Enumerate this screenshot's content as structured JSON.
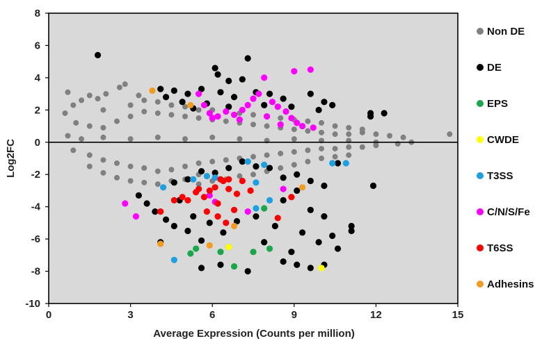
{
  "chart_data": {
    "type": "scatter",
    "title": "",
    "xlabel": "Average Expression (Counts per million)",
    "ylabel": "Log2FC",
    "xlim": [
      0,
      15
    ],
    "ylim": [
      -10,
      8
    ],
    "x_ticks": [
      "0",
      "3",
      "6",
      "9",
      "12",
      "15"
    ],
    "y_ticks": [
      "8",
      "6",
      "4",
      "2",
      "0",
      "-2",
      "-4",
      "-6",
      "-8",
      "-10"
    ],
    "background": "#d9d9d9",
    "grid": false,
    "zero_line": true,
    "legend_position": "right",
    "series": [
      {
        "name": "Non DE",
        "color": "#808080",
        "points": [
          [
            0.6,
            1.8
          ],
          [
            0.7,
            3.1
          ],
          [
            0.9,
            2.3
          ],
          [
            1.2,
            2.6
          ],
          [
            1.5,
            2.9
          ],
          [
            1.8,
            2.7
          ],
          [
            2.1,
            3.0
          ],
          [
            2.6,
            3.4
          ],
          [
            2.8,
            3.6
          ],
          [
            3.3,
            2.9
          ],
          [
            1.0,
            1.2
          ],
          [
            1.5,
            1.0
          ],
          [
            2.0,
            0.9
          ],
          [
            2.5,
            1.3
          ],
          [
            3.0,
            1.6
          ],
          [
            3.5,
            1.9
          ],
          [
            4.0,
            1.8
          ],
          [
            4.5,
            1.7
          ],
          [
            5.0,
            1.6
          ],
          [
            5.5,
            1.5
          ],
          [
            6.0,
            1.4
          ],
          [
            6.5,
            1.3
          ],
          [
            7.0,
            1.2
          ],
          [
            7.5,
            1.1
          ],
          [
            8.0,
            1.0
          ],
          [
            8.5,
            0.9
          ],
          [
            9.0,
            0.8
          ],
          [
            9.5,
            0.7
          ],
          [
            10.0,
            0.6
          ],
          [
            10.5,
            0.5
          ],
          [
            11.0,
            0.5
          ],
          [
            11.5,
            0.6
          ],
          [
            12.0,
            0.5
          ],
          [
            12.5,
            0.4
          ],
          [
            13.0,
            0.3
          ],
          [
            13.3,
            0.0
          ],
          [
            14.7,
            0.5
          ],
          [
            0.7,
            0.4
          ],
          [
            1.2,
            0.2
          ],
          [
            2.0,
            0.3
          ],
          [
            3.0,
            0.2
          ],
          [
            4.0,
            0.3
          ],
          [
            5.0,
            0.2
          ],
          [
            6.0,
            0.3
          ],
          [
            7.0,
            0.2
          ],
          [
            8.0,
            0.1
          ],
          [
            9.0,
            0.2
          ],
          [
            10.0,
            0.1
          ],
          [
            11.0,
            0.1
          ],
          [
            12.0,
            0.0
          ],
          [
            12.8,
            -0.1
          ],
          [
            0.9,
            -0.5
          ],
          [
            1.5,
            -0.8
          ],
          [
            2.0,
            -1.1
          ],
          [
            2.5,
            -1.3
          ],
          [
            3.0,
            -1.5
          ],
          [
            3.5,
            -1.6
          ],
          [
            4.0,
            -1.8
          ],
          [
            4.5,
            -1.7
          ],
          [
            5.0,
            -1.5
          ],
          [
            5.5,
            -1.3
          ],
          [
            6.0,
            -1.2
          ],
          [
            6.5,
            -1.1
          ],
          [
            7.0,
            -1.0
          ],
          [
            7.5,
            -0.9
          ],
          [
            8.0,
            -0.8
          ],
          [
            8.5,
            -0.7
          ],
          [
            9.0,
            -0.6
          ],
          [
            9.5,
            -0.5
          ],
          [
            10.0,
            -0.4
          ],
          [
            10.5,
            -0.4
          ],
          [
            11.0,
            -0.3
          ],
          [
            11.5,
            -0.3
          ],
          [
            12.0,
            -0.2
          ],
          [
            1.5,
            -1.5
          ],
          [
            2.0,
            -1.9
          ],
          [
            2.5,
            -2.2
          ],
          [
            3.0,
            -2.4
          ],
          [
            3.5,
            -2.5
          ],
          [
            4.0,
            -2.6
          ],
          [
            4.5,
            -2.4
          ],
          [
            5.0,
            -2.3
          ],
          [
            5.5,
            -2.0
          ],
          [
            2.0,
            2.0
          ],
          [
            3.0,
            2.3
          ],
          [
            3.5,
            2.6
          ],
          [
            4.0,
            2.5
          ],
          [
            4.5,
            2.3
          ],
          [
            5.0,
            2.2
          ],
          [
            5.5,
            2.0
          ],
          [
            6.0,
            2.0
          ],
          [
            6.5,
            1.9
          ],
          [
            7.0,
            1.8
          ],
          [
            7.5,
            1.7
          ],
          [
            8.0,
            1.6
          ],
          [
            8.5,
            1.5
          ],
          [
            9.0,
            1.4
          ],
          [
            9.5,
            1.3
          ],
          [
            10.0,
            1.2
          ],
          [
            10.5,
            1.0
          ],
          [
            11.0,
            0.9
          ],
          [
            11.5,
            0.8
          ],
          [
            5.5,
            -2.6
          ],
          [
            6.0,
            -2.4
          ],
          [
            6.5,
            -2.3
          ],
          [
            7.0,
            -2.1
          ],
          [
            7.5,
            -2.0
          ],
          [
            8.0,
            -1.8
          ],
          [
            8.5,
            -1.6
          ],
          [
            9.0,
            -1.4
          ],
          [
            9.5,
            -1.2
          ],
          [
            10.0,
            -1.0
          ],
          [
            10.5,
            -0.9
          ],
          [
            11.0,
            -0.8
          ]
        ]
      },
      {
        "name": "DE",
        "color": "#000000",
        "points": [
          [
            1.8,
            5.4
          ],
          [
            7.3,
            5.2
          ],
          [
            6.1,
            4.6
          ],
          [
            6.2,
            4.2
          ],
          [
            7.1,
            3.9
          ],
          [
            6.6,
            3.8
          ],
          [
            4.1,
            3.3
          ],
          [
            4.6,
            3.2
          ],
          [
            5.1,
            3.0
          ],
          [
            5.6,
            3.3
          ],
          [
            6.3,
            3.1
          ],
          [
            6.8,
            2.8
          ],
          [
            7.6,
            3.1
          ],
          [
            8.1,
            3.0
          ],
          [
            8.6,
            2.7
          ],
          [
            9.6,
            3.0
          ],
          [
            10.1,
            2.5
          ],
          [
            10.4,
            2.3
          ],
          [
            4.3,
            2.8
          ],
          [
            4.9,
            2.5
          ],
          [
            5.3,
            2.1
          ],
          [
            5.8,
            2.4
          ],
          [
            6.6,
            2.2
          ],
          [
            7.9,
            2.3
          ],
          [
            8.9,
            2.2
          ],
          [
            9.9,
            2.0
          ],
          [
            11.8,
            1.8
          ],
          [
            12.3,
            1.8
          ],
          [
            11.8,
            1.6
          ],
          [
            3.3,
            -3.3
          ],
          [
            3.6,
            -3.8
          ],
          [
            3.9,
            -4.3
          ],
          [
            4.3,
            -4.8
          ],
          [
            4.6,
            -5.2
          ],
          [
            4.1,
            -6.2
          ],
          [
            5.1,
            -5.5
          ],
          [
            5.6,
            -6.1
          ],
          [
            5.6,
            -7.8
          ],
          [
            6.3,
            -7.6
          ],
          [
            7.3,
            -8.0
          ],
          [
            8.6,
            -7.4
          ],
          [
            9.1,
            -7.6
          ],
          [
            9.6,
            -7.8
          ],
          [
            10.1,
            -7.6
          ],
          [
            10.6,
            -6.6
          ],
          [
            11.1,
            -5.5
          ],
          [
            11.1,
            -5.2
          ],
          [
            11.9,
            -2.7
          ],
          [
            10.6,
            -1.3
          ],
          [
            10.1,
            -2.7
          ],
          [
            9.6,
            -2.4
          ],
          [
            9.1,
            -2.0
          ],
          [
            8.6,
            -2.2
          ],
          [
            8.1,
            -1.6
          ],
          [
            7.6,
            -1.5
          ],
          [
            7.1,
            -1.2
          ],
          [
            6.6,
            -1.6
          ],
          [
            6.1,
            -1.9
          ],
          [
            5.6,
            -1.8
          ],
          [
            5.1,
            -2.3
          ],
          [
            4.6,
            -2.5
          ],
          [
            9.1,
            -3.0
          ],
          [
            8.6,
            -3.6
          ],
          [
            9.6,
            -4.2
          ],
          [
            10.1,
            -4.6
          ],
          [
            9.3,
            -5.6
          ],
          [
            8.3,
            -5.2
          ],
          [
            7.6,
            -4.6
          ],
          [
            6.9,
            -4.9
          ],
          [
            6.4,
            -5.6
          ],
          [
            5.9,
            -5.0
          ],
          [
            5.3,
            -4.6
          ],
          [
            4.8,
            -3.6
          ],
          [
            7.9,
            -6.2
          ],
          [
            8.9,
            -6.8
          ],
          [
            9.9,
            -6.2
          ],
          [
            10.4,
            -5.8
          ]
        ]
      },
      {
        "name": "EPS",
        "color": "#1aa64a",
        "points": [
          [
            5.4,
            -6.6
          ],
          [
            5.2,
            -6.9
          ],
          [
            6.6,
            -6.5
          ],
          [
            7.5,
            -6.8
          ],
          [
            8.1,
            -6.6
          ],
          [
            6.3,
            -6.8
          ],
          [
            6.8,
            -7.7
          ],
          [
            7.9,
            -4.1
          ]
        ]
      },
      {
        "name": "CWDE",
        "color": "#ffff00",
        "points": [
          [
            10.0,
            -7.8
          ],
          [
            6.6,
            -6.5
          ]
        ]
      },
      {
        "name": "T3SS",
        "color": "#1ba0e2",
        "points": [
          [
            4.6,
            -7.3
          ],
          [
            5.3,
            -2.3
          ],
          [
            5.8,
            -2.1
          ],
          [
            6.1,
            -2.2
          ],
          [
            7.3,
            -1.2
          ],
          [
            7.6,
            -2.5
          ],
          [
            7.9,
            -1.4
          ],
          [
            8.1,
            -3.6
          ],
          [
            7.6,
            -4.1
          ],
          [
            10.4,
            -1.3
          ],
          [
            10.9,
            -1.3
          ],
          [
            4.2,
            -2.8
          ]
        ]
      },
      {
        "name": "C/N/S/Fe",
        "color": "#ff00ff",
        "points": [
          [
            5.5,
            3.0
          ],
          [
            5.7,
            2.3
          ],
          [
            5.9,
            1.8
          ],
          [
            6.2,
            1.6
          ],
          [
            6.5,
            1.9
          ],
          [
            6.8,
            1.7
          ],
          [
            7.1,
            2.0
          ],
          [
            7.3,
            2.3
          ],
          [
            7.5,
            2.7
          ],
          [
            7.7,
            3.0
          ],
          [
            7.9,
            4.0
          ],
          [
            8.2,
            2.5
          ],
          [
            8.4,
            2.2
          ],
          [
            8.7,
            1.9
          ],
          [
            8.9,
            1.5
          ],
          [
            9.1,
            1.2
          ],
          [
            9.3,
            1.0
          ],
          [
            9.0,
            4.4
          ],
          [
            9.6,
            4.5
          ],
          [
            8.0,
            1.6
          ],
          [
            7.0,
            1.4
          ],
          [
            6.0,
            1.5
          ],
          [
            8.5,
            1.1
          ],
          [
            3.2,
            -4.6
          ],
          [
            2.8,
            -3.8
          ],
          [
            5.9,
            -3.3
          ],
          [
            7.3,
            -4.3
          ],
          [
            8.6,
            -2.9
          ],
          [
            6.1,
            -3.7
          ],
          [
            9.7,
            0.9
          ]
        ]
      },
      {
        "name": "T6SS",
        "color": "#ff0000",
        "points": [
          [
            4.1,
            -4.3
          ],
          [
            4.6,
            -3.6
          ],
          [
            4.9,
            -3.4
          ],
          [
            5.1,
            -3.6
          ],
          [
            5.4,
            -3.1
          ],
          [
            5.7,
            -3.4
          ],
          [
            5.9,
            -3.0
          ],
          [
            6.1,
            -2.8
          ],
          [
            6.4,
            -2.4
          ],
          [
            6.6,
            -2.9
          ],
          [
            6.9,
            -3.2
          ],
          [
            7.1,
            -2.4
          ],
          [
            7.4,
            -3.0
          ],
          [
            5.8,
            -4.3
          ],
          [
            6.2,
            -4.6
          ],
          [
            6.5,
            -5.0
          ],
          [
            6.8,
            -4.2
          ],
          [
            6.2,
            -3.8
          ],
          [
            5.5,
            -2.9
          ],
          [
            8.4,
            -4.7
          ],
          [
            8.9,
            -3.4
          ],
          [
            6.3,
            -2.3
          ],
          [
            6.6,
            -2.3
          ]
        ]
      },
      {
        "name": "Adhesins",
        "color": "#f39b21",
        "points": [
          [
            3.8,
            3.2
          ],
          [
            5.2,
            2.3
          ],
          [
            4.1,
            -6.3
          ],
          [
            5.9,
            -6.4
          ],
          [
            6.8,
            -5.2
          ],
          [
            9.3,
            -2.8
          ]
        ]
      }
    ]
  }
}
